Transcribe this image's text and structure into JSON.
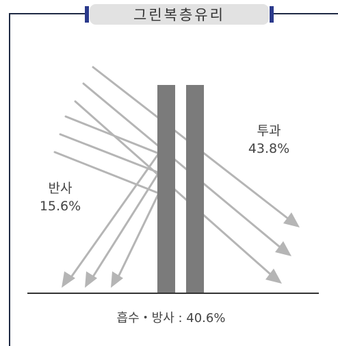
{
  "title": "그린복층유리",
  "reflection": {
    "label": "반사",
    "value": "15.6%"
  },
  "transmission": {
    "label": "투과",
    "value": "43.8%"
  },
  "absorption_label": "흡수・방사 : 40.6%",
  "colors": {
    "frame": "#1f2a44",
    "frame_cap": "#2b3a8c",
    "arrow": "#b5b5b5",
    "glass": "#7b7b7b",
    "ground": "#333333",
    "text": "#444444"
  }
}
